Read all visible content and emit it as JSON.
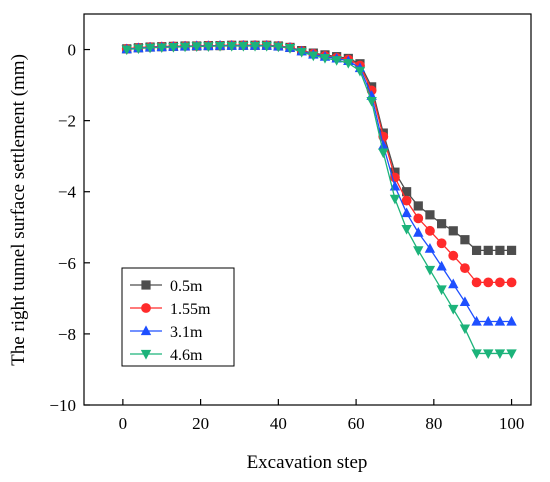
{
  "chart_data": {
    "type": "line",
    "title": "",
    "xlabel": "Excavation step",
    "ylabel": "The right tunnel surface settlement (mm)",
    "xlim": [
      -10,
      105
    ],
    "ylim": [
      -10,
      1
    ],
    "xticks": [
      0,
      20,
      40,
      60,
      80,
      100
    ],
    "yticks": [
      0,
      -2,
      -4,
      -6,
      -8,
      -10
    ],
    "xtick_labels": [
      "0",
      "20",
      "40",
      "60",
      "80",
      "100"
    ],
    "ytick_labels": [
      "0",
      "−2",
      "−4",
      "−6",
      "−8",
      "−10"
    ],
    "legend_position": "bottom-left",
    "grid": false,
    "x": [
      1,
      4,
      7,
      10,
      13,
      16,
      19,
      22,
      25,
      28,
      31,
      34,
      37,
      40,
      43,
      46,
      49,
      52,
      55,
      58,
      61,
      64,
      67,
      70,
      73,
      76,
      79,
      82,
      85,
      88,
      91,
      94,
      97,
      100
    ],
    "series": [
      {
        "name": "0.5m",
        "color": "#4d4d4d",
        "marker": "square",
        "values": [
          0.02,
          0.05,
          0.07,
          0.08,
          0.09,
          0.1,
          0.1,
          0.11,
          0.11,
          0.12,
          0.12,
          0.12,
          0.12,
          0.1,
          0.06,
          -0.03,
          -0.1,
          -0.15,
          -0.2,
          -0.25,
          -0.4,
          -1.05,
          -2.35,
          -3.45,
          -4.0,
          -4.4,
          -4.65,
          -4.9,
          -5.1,
          -5.35,
          -5.65,
          -5.65,
          -5.65,
          -5.65
        ]
      },
      {
        "name": "1.55m",
        "color": "#ff2b2b",
        "marker": "circle",
        "values": [
          0.02,
          0.05,
          0.07,
          0.08,
          0.09,
          0.1,
          0.1,
          0.11,
          0.11,
          0.12,
          0.12,
          0.12,
          0.12,
          0.1,
          0.06,
          -0.04,
          -0.12,
          -0.18,
          -0.23,
          -0.28,
          -0.45,
          -1.15,
          -2.45,
          -3.6,
          -4.25,
          -4.75,
          -5.1,
          -5.45,
          -5.8,
          -6.15,
          -6.55,
          -6.55,
          -6.55,
          -6.55
        ]
      },
      {
        "name": "3.1m",
        "color": "#1e4fff",
        "marker": "triangle-up",
        "values": [
          0.01,
          0.04,
          0.06,
          0.07,
          0.08,
          0.09,
          0.1,
          0.1,
          0.11,
          0.11,
          0.11,
          0.11,
          0.11,
          0.09,
          0.05,
          -0.05,
          -0.14,
          -0.2,
          -0.25,
          -0.32,
          -0.52,
          -1.3,
          -2.7,
          -3.85,
          -4.6,
          -5.15,
          -5.6,
          -6.1,
          -6.6,
          -7.1,
          -7.65,
          -7.65,
          -7.65,
          -7.65
        ]
      },
      {
        "name": "4.6m",
        "color": "#1cb37a",
        "marker": "triangle-down",
        "values": [
          0.0,
          0.03,
          0.05,
          0.06,
          0.07,
          0.08,
          0.09,
          0.09,
          0.1,
          0.1,
          0.1,
          0.1,
          0.1,
          0.08,
          0.04,
          -0.07,
          -0.17,
          -0.24,
          -0.3,
          -0.38,
          -0.6,
          -1.45,
          -2.9,
          -4.2,
          -5.05,
          -5.65,
          -6.2,
          -6.75,
          -7.3,
          -7.85,
          -8.55,
          -8.55,
          -8.55,
          -8.55
        ]
      }
    ]
  }
}
